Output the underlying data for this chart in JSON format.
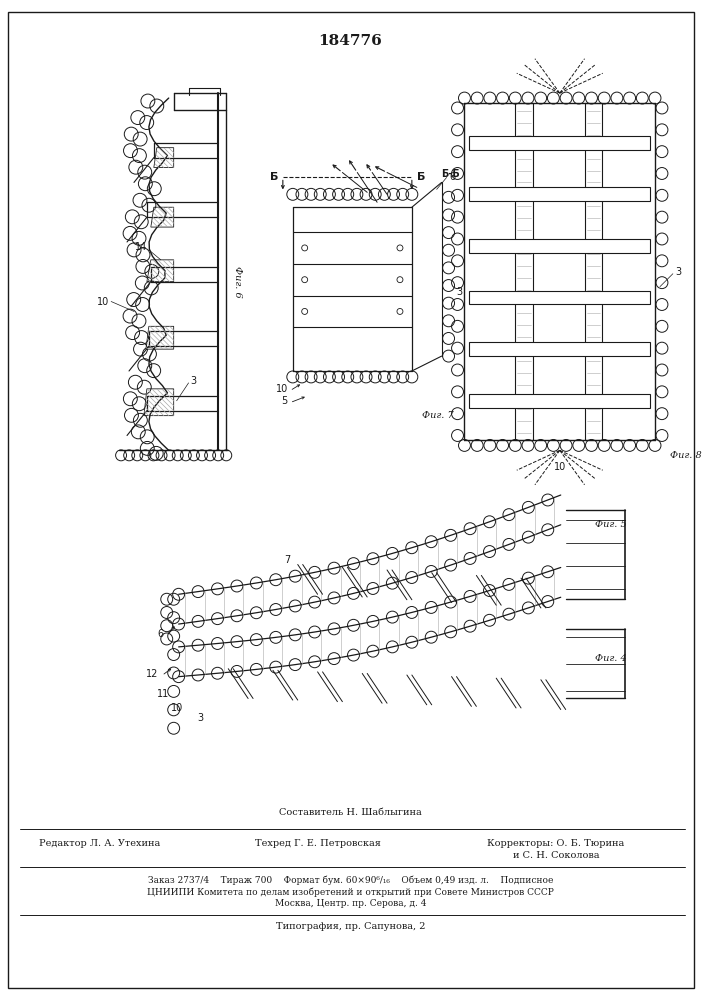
{
  "title_number": "184776",
  "bg_color": "#ffffff",
  "draw_color": "#1a1a1a",
  "light_color": "#aaaaaa",
  "footer_compositor": "Составитель Н. Шаблыгина",
  "footer_editor": "Редактор Л. А. Утехина",
  "footer_techred": "Техред Г. Е. Петровская",
  "footer_correctors": "Корректоры: О. Б. Тюрина",
  "footer_correctors2": "и С. Н. Соколова",
  "footer_order": "Заказ 2737/4    Тираж 700    Формат бум. 60×90⁶/₁₆    Объем 0,49 изд. л.    Подписное",
  "footer_tsniipi": "ЦНИИПИ Комитета по делам изобретений и открытий при Совете Министров СССР",
  "footer_moscow": "Москва, Центр. пр. Серова, д. 4",
  "footer_typo": "Типография, пр. Сапунова, 2"
}
